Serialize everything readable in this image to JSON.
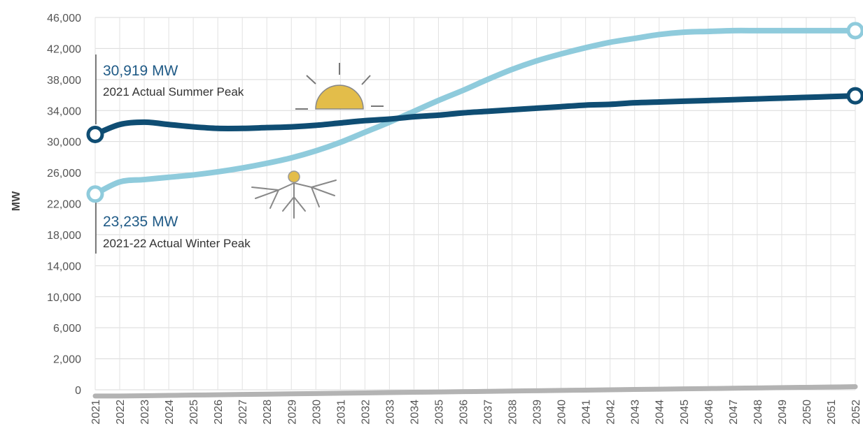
{
  "chart_data": {
    "type": "line",
    "ylabel": "MW",
    "xlabel": "",
    "title": "",
    "ylim": [
      0,
      46000
    ],
    "yticks": [
      0,
      2000,
      6000,
      10000,
      14000,
      18000,
      22000,
      26000,
      30000,
      34000,
      38000,
      42000,
      46000
    ],
    "ytick_labels": [
      "0",
      "2,000",
      "6,000",
      "10,000",
      "14,000",
      "18,000",
      "22,000",
      "26,000",
      "30,000",
      "34,000",
      "38,000",
      "42,000",
      "46,000"
    ],
    "x": [
      "2021",
      "2022",
      "2023",
      "2024",
      "2025",
      "2026",
      "2027",
      "2028",
      "2029",
      "2030",
      "2031",
      "2032",
      "2033",
      "2034",
      "2035",
      "2036",
      "2037",
      "2038",
      "2039",
      "2040",
      "2041",
      "2042",
      "2043",
      "2044",
      "2045",
      "2046",
      "2047",
      "2048",
      "2049",
      "2050",
      "2051",
      "2052"
    ],
    "grid": true,
    "series": [
      {
        "key": "summer",
        "color": "#0f4d73",
        "values": [
          30919,
          32200,
          32500,
          32200,
          31900,
          31700,
          31700,
          31800,
          31900,
          32100,
          32400,
          32700,
          32900,
          33200,
          33400,
          33700,
          33900,
          34100,
          34300,
          34500,
          34700,
          34800,
          35000,
          35100,
          35200,
          35300,
          35400,
          35500,
          35600,
          35700,
          35800,
          35900
        ]
      },
      {
        "key": "winter",
        "color": "#8fcbdc",
        "values": [
          23235,
          24800,
          25100,
          25400,
          25700,
          26100,
          26600,
          27200,
          27900,
          28800,
          29900,
          31200,
          32500,
          33900,
          35300,
          36600,
          38000,
          39300,
          40400,
          41300,
          42100,
          42800,
          43300,
          43800,
          44100,
          44200,
          44300,
          44300,
          44300,
          44300,
          44300,
          44300
        ]
      },
      {
        "key": "baseline",
        "color": "#b3b3b3",
        "values": [
          -400,
          -400,
          -380,
          -360,
          -340,
          -320,
          -300,
          -280,
          -260,
          -240,
          -220,
          -200,
          -180,
          -160,
          -140,
          -120,
          -100,
          -80,
          -60,
          -40,
          -20,
          0,
          20,
          40,
          60,
          80,
          100,
          120,
          140,
          160,
          180,
          200
        ]
      }
    ],
    "annotations": [
      {
        "value": "30,919 MW",
        "caption": "2021 Actual Summer Peak",
        "icon": "sun-icon"
      },
      {
        "value": "23,235 MW",
        "caption": "2021-22 Actual Winter Peak",
        "icon": "snowflake-icon"
      }
    ]
  }
}
